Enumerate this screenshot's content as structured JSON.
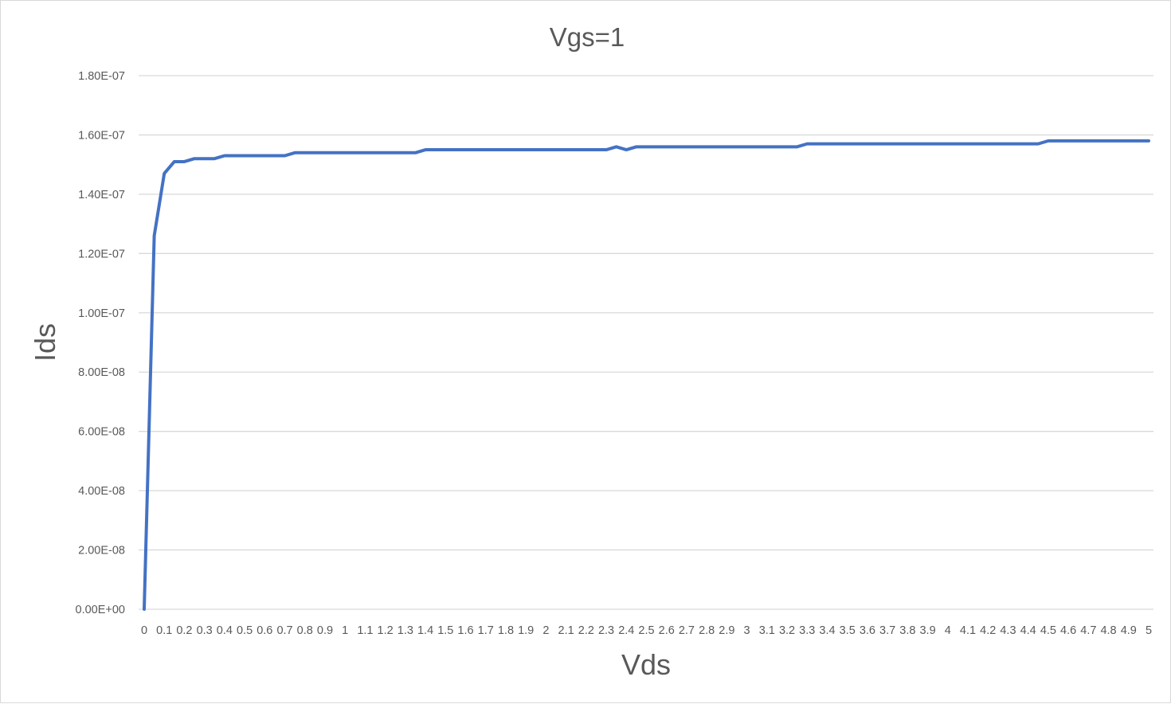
{
  "chart_data": {
    "type": "line",
    "title": "Vgs=1",
    "xlabel": "Vds",
    "ylabel": "Ids",
    "ylim": [
      0,
      1.8e-07
    ],
    "yticks": [
      0,
      2e-08,
      4e-08,
      6e-08,
      8e-08,
      1e-07,
      1.2e-07,
      1.4e-07,
      1.6e-07,
      1.8e-07
    ],
    "ytick_labels": [
      "0.00E+00",
      "2.00E-08",
      "4.00E-08",
      "6.00E-08",
      "8.00E-08",
      "1.00E-07",
      "1.20E-07",
      "1.40E-07",
      "1.60E-07",
      "1.80E-07"
    ],
    "x_tick_labels": [
      "0",
      "0.1",
      "0.2",
      "0.3",
      "0.4",
      "0.5",
      "0.6",
      "0.7",
      "0.8",
      "0.9",
      "1",
      "1.1",
      "1.2",
      "1.3",
      "1.4",
      "1.5",
      "1.6",
      "1.7",
      "1.8",
      "1.9",
      "2",
      "2.1",
      "2.2",
      "2.3",
      "2.4",
      "2.5",
      "2.6",
      "2.7",
      "2.8",
      "2.9",
      "3",
      "3.1",
      "3.2",
      "3.3",
      "3.4",
      "3.5",
      "3.6",
      "3.7",
      "3.8",
      "3.9",
      "4",
      "4.1",
      "4.2",
      "4.3",
      "4.4",
      "4.5",
      "4.6",
      "4.7",
      "4.8",
      "4.9",
      "5"
    ],
    "grid": true,
    "legend": "none",
    "series": [
      {
        "color": "#4472c4",
        "x": [
          0,
          0.05,
          0.1,
          0.15,
          0.2,
          0.25,
          0.3,
          0.35,
          0.4,
          0.45,
          0.5,
          0.55,
          0.6,
          0.65,
          0.7,
          0.75,
          0.8,
          0.85,
          0.9,
          0.95,
          1,
          1.05,
          1.1,
          1.15,
          1.2,
          1.25,
          1.3,
          1.35,
          1.4,
          1.45,
          1.5,
          1.55,
          1.6,
          1.65,
          1.7,
          1.75,
          1.8,
          1.85,
          1.9,
          1.95,
          2,
          2.05,
          2.1,
          2.15,
          2.2,
          2.25,
          2.3,
          2.35,
          2.4,
          2.45,
          2.5,
          2.55,
          2.6,
          2.65,
          2.7,
          2.75,
          2.8,
          2.85,
          2.9,
          2.95,
          3,
          3.05,
          3.1,
          3.15,
          3.2,
          3.25,
          3.3,
          3.35,
          3.4,
          3.45,
          3.5,
          3.55,
          3.6,
          3.65,
          3.7,
          3.75,
          3.8,
          3.85,
          3.9,
          3.95,
          4,
          4.05,
          4.1,
          4.15,
          4.2,
          4.25,
          4.3,
          4.35,
          4.4,
          4.45,
          4.5,
          4.55,
          4.6,
          4.65,
          4.7,
          4.75,
          4.8,
          4.85,
          4.9,
          4.95,
          5
        ],
        "y": [
          0,
          1.26e-07,
          1.47e-07,
          1.51e-07,
          1.51e-07,
          1.52e-07,
          1.52e-07,
          1.52e-07,
          1.53e-07,
          1.53e-07,
          1.53e-07,
          1.53e-07,
          1.53e-07,
          1.53e-07,
          1.53e-07,
          1.54e-07,
          1.54e-07,
          1.54e-07,
          1.54e-07,
          1.54e-07,
          1.54e-07,
          1.54e-07,
          1.54e-07,
          1.54e-07,
          1.54e-07,
          1.54e-07,
          1.54e-07,
          1.54e-07,
          1.55e-07,
          1.55e-07,
          1.55e-07,
          1.55e-07,
          1.55e-07,
          1.55e-07,
          1.55e-07,
          1.55e-07,
          1.55e-07,
          1.55e-07,
          1.55e-07,
          1.55e-07,
          1.55e-07,
          1.55e-07,
          1.55e-07,
          1.55e-07,
          1.55e-07,
          1.55e-07,
          1.55e-07,
          1.56e-07,
          1.55e-07,
          1.56e-07,
          1.56e-07,
          1.56e-07,
          1.56e-07,
          1.56e-07,
          1.56e-07,
          1.56e-07,
          1.56e-07,
          1.56e-07,
          1.56e-07,
          1.56e-07,
          1.56e-07,
          1.56e-07,
          1.56e-07,
          1.56e-07,
          1.56e-07,
          1.56e-07,
          1.57e-07,
          1.57e-07,
          1.57e-07,
          1.57e-07,
          1.57e-07,
          1.57e-07,
          1.57e-07,
          1.57e-07,
          1.57e-07,
          1.57e-07,
          1.57e-07,
          1.57e-07,
          1.57e-07,
          1.57e-07,
          1.57e-07,
          1.57e-07,
          1.57e-07,
          1.57e-07,
          1.57e-07,
          1.57e-07,
          1.57e-07,
          1.57e-07,
          1.57e-07,
          1.57e-07,
          1.58e-07,
          1.58e-07,
          1.58e-07,
          1.58e-07,
          1.58e-07,
          1.58e-07,
          1.58e-07,
          1.58e-07,
          1.58e-07,
          1.58e-07,
          1.58e-07
        ]
      }
    ]
  }
}
